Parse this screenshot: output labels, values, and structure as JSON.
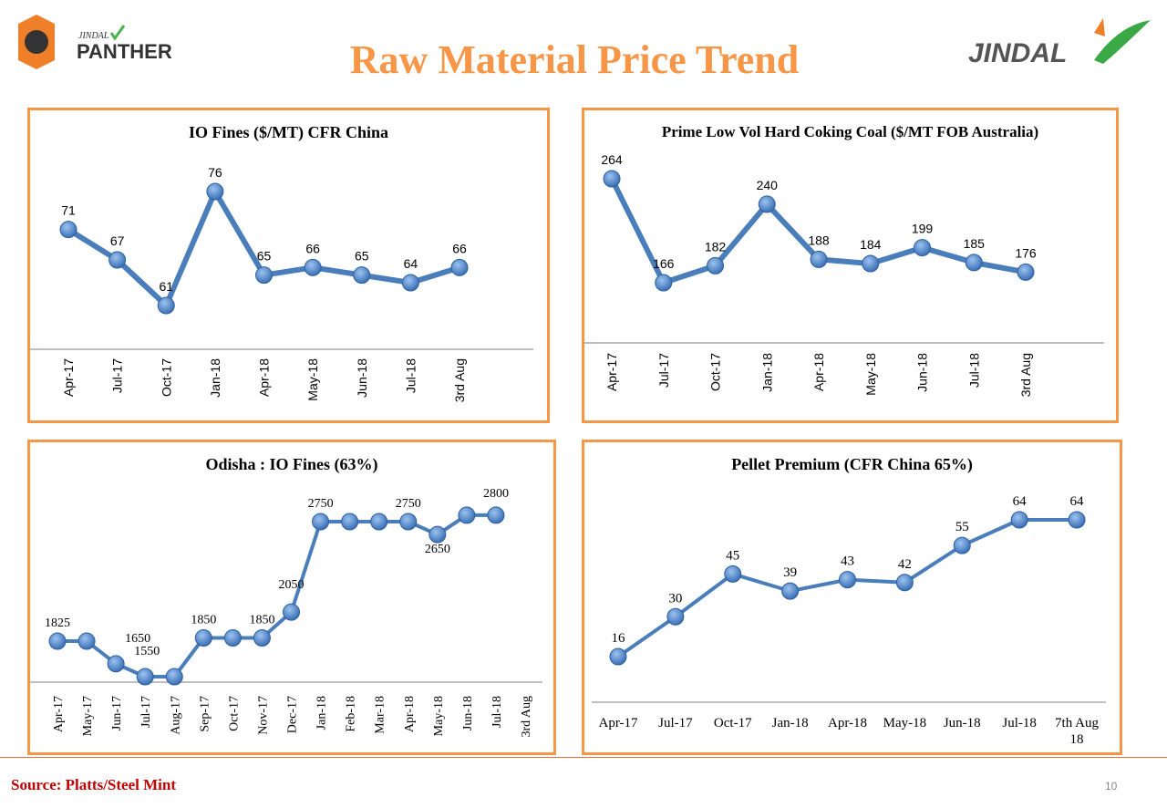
{
  "slide": {
    "title": "Raw Material Price Trend",
    "logo_left_text": "JINDAL PANTHER",
    "logo_right_text": "JINDAL",
    "source": "Source: Platts/Steel Mint",
    "page_number": "10"
  },
  "colors": {
    "accent": "#f79646",
    "series": "#4a7ebb",
    "source": "#c00000"
  },
  "chart_data": [
    {
      "type": "line",
      "title": "IO Fines ($/MT) CFR China",
      "categories": [
        "Apr-17",
        "Jul-17",
        "Oct-17",
        "Jan-18",
        "Apr-18",
        "May-18",
        "Jun-18",
        "Jul-18",
        "3rd Aug"
      ],
      "values": [
        71,
        67,
        61,
        76,
        65,
        66,
        65,
        64,
        66
      ],
      "labels": [
        "71",
        "67",
        "61",
        "76",
        "65",
        "66",
        "65",
        "64",
        "66"
      ],
      "grid": false,
      "legend": "none"
    },
    {
      "type": "line",
      "title": "Prime Low Vol Hard Coking Coal ($/MT FOB Australia)",
      "categories": [
        "Apr-17",
        "Jul-17",
        "Oct-17",
        "Jan-18",
        "Apr-18",
        "May-18",
        "Jun-18",
        "Jul-18",
        "3rd Aug"
      ],
      "values": [
        264,
        166,
        182,
        240,
        188,
        184,
        199,
        185,
        176
      ],
      "labels": [
        "264",
        "166",
        "182",
        "240",
        "188",
        "184",
        "199",
        "185",
        "176"
      ],
      "grid": false,
      "legend": "none"
    },
    {
      "type": "line",
      "title": "Odisha : IO Fines (63%)",
      "categories": [
        "Apr-17",
        "May-17",
        "Jun-17",
        "Jul-17",
        "Aug-17",
        "Sep-17",
        "Oct-17",
        "Nov-17",
        "Dec-17",
        "Jan-18",
        "Feb-18",
        "Mar-18",
        "Apr-18",
        "May-18",
        "Jun-18",
        "Jul-18",
        "3rd Aug"
      ],
      "values": [
        1825,
        1825,
        1650,
        1550,
        1550,
        1850,
        1850,
        1850,
        2050,
        2750,
        2750,
        2750,
        2750,
        2650,
        2800,
        2800,
        null
      ],
      "labels": [
        "1825",
        null,
        "1650",
        null,
        "1550",
        "1850",
        null,
        "1850",
        "2050",
        "2750",
        null,
        null,
        "2750",
        "2650",
        null,
        "2800",
        null
      ],
      "grid": false,
      "legend": "none"
    },
    {
      "type": "line",
      "title": "Pellet Premium (CFR China 65%)",
      "categories": [
        "Apr-17",
        "Jul-17",
        "Oct-17",
        "Jan-18",
        "Apr-18",
        "May-18",
        "Jun-18",
        "Jul-18",
        "7th Aug 18"
      ],
      "values": [
        16,
        30,
        45,
        39,
        43,
        42,
        55,
        64,
        64
      ],
      "labels": [
        "16",
        "30",
        "45",
        "39",
        "43",
        "42",
        "55",
        "64",
        "64"
      ],
      "grid": false,
      "legend": "none"
    }
  ]
}
